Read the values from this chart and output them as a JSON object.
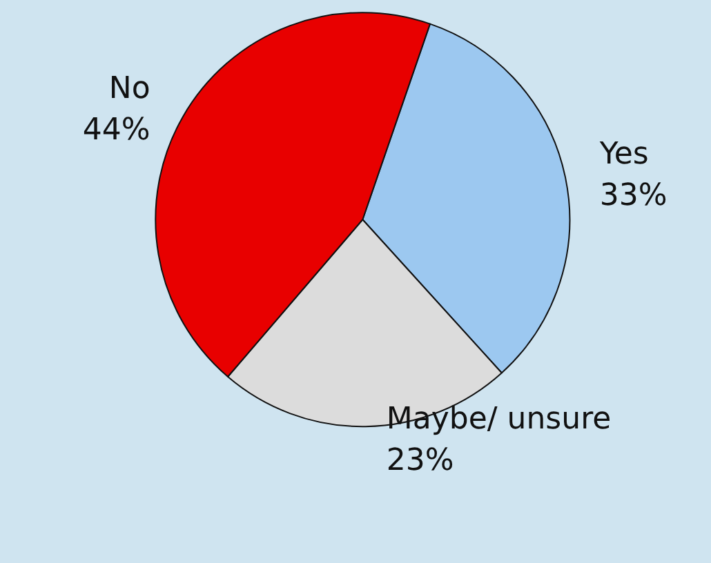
{
  "chart_data": {
    "type": "pie",
    "categories": [
      "Yes",
      "Maybe/ unsure",
      "No"
    ],
    "values": [
      33,
      23,
      44
    ],
    "value_labels": [
      "33%",
      "23%",
      "44%"
    ],
    "colors": [
      "#9cc8f0",
      "#dcdcdc",
      "#e80000"
    ]
  }
}
